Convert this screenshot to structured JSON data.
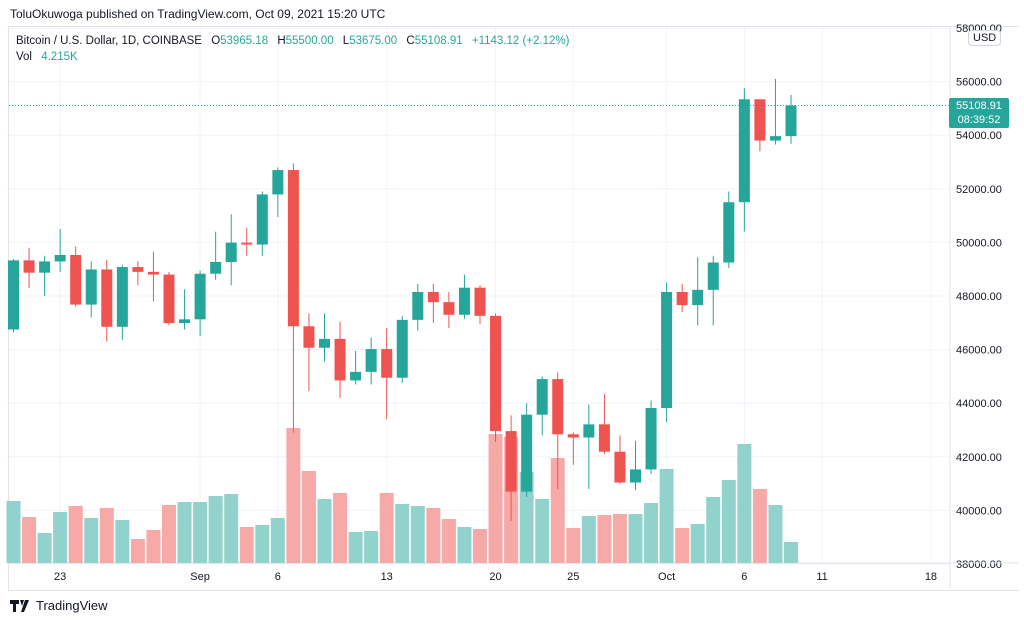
{
  "publisher_line": "ToluOkuwoga published on TradingView.com, Oct 09, 2021 15:20 UTC",
  "legend": {
    "symbol": "Bitcoin / U.S. Dollar, 1D, COINBASE",
    "open_label": "O",
    "open": "53965.18",
    "high_label": "H",
    "high": "55500.00",
    "low_label": "L",
    "low": "53675.00",
    "close_label": "C",
    "close": "55108.91",
    "change": "+1143.12 (+2.12%)",
    "vol_label": "Vol",
    "vol": "4.215K"
  },
  "currency_button": "USD",
  "last_price": {
    "price": "55108.91",
    "countdown": "08:39:52"
  },
  "footer_logo": "TradingView",
  "colors": {
    "up": "#26a69a",
    "down": "#ef5350",
    "up_volume": "#92d2cc",
    "down_volume": "#f7a9a7",
    "grid": "#f0f3fa"
  },
  "chart_data": {
    "type": "candlestick",
    "price_axis": {
      "range": [
        38000,
        58000
      ],
      "ticks": [
        "58000.00",
        "56000.00",
        "54000.00",
        "52000.00",
        "50000.00",
        "48000.00",
        "46000.00",
        "44000.00",
        "42000.00",
        "40000.00",
        "38000.00"
      ]
    },
    "time_axis": {
      "ticks": [
        {
          "label": "23",
          "date": "2021-08-23"
        },
        {
          "label": "Sep",
          "date": "2021-09-01"
        },
        {
          "label": "6",
          "date": "2021-09-06"
        },
        {
          "label": "13",
          "date": "2021-09-13"
        },
        {
          "label": "20",
          "date": "2021-09-20"
        },
        {
          "label": "25",
          "date": "2021-09-25"
        },
        {
          "label": "Oct",
          "date": "2021-10-01"
        },
        {
          "label": "6",
          "date": "2021-10-06"
        },
        {
          "label": "11",
          "date": "2021-10-11"
        },
        {
          "label": "18",
          "date": "2021-10-18"
        }
      ],
      "range": [
        "2021-08-20",
        "2021-10-21"
      ]
    },
    "grid": true,
    "volume_unit": "K",
    "columns": [
      "date",
      "open",
      "high",
      "low",
      "close",
      "volume"
    ],
    "candles": [
      [
        "2021-08-20",
        46750,
        49380,
        46650,
        49330,
        12.4
      ],
      [
        "2021-08-21",
        49330,
        49800,
        48300,
        48870,
        9.2
      ],
      [
        "2021-08-22",
        48870,
        49500,
        48000,
        49290,
        6.0
      ],
      [
        "2021-08-23",
        49290,
        50500,
        48900,
        49530,
        10.2
      ],
      [
        "2021-08-24",
        49530,
        49850,
        47600,
        47680,
        11.4
      ],
      [
        "2021-08-25",
        47680,
        49300,
        47200,
        48990,
        9.0
      ],
      [
        "2021-08-26",
        48990,
        49350,
        46300,
        46850,
        11.0
      ],
      [
        "2021-08-27",
        46850,
        49150,
        46350,
        49080,
        8.6
      ],
      [
        "2021-08-28",
        49080,
        49300,
        48400,
        48900,
        4.8
      ],
      [
        "2021-08-29",
        48900,
        49650,
        47800,
        48800,
        6.6
      ],
      [
        "2021-08-30",
        48800,
        48900,
        46900,
        46990,
        11.6
      ],
      [
        "2021-08-31",
        46990,
        48250,
        46750,
        47130,
        12.2
      ],
      [
        "2021-09-01",
        47130,
        48950,
        46500,
        48830,
        12.2
      ],
      [
        "2021-09-02",
        48830,
        50400,
        48600,
        49270,
        13.4
      ],
      [
        "2021-09-03",
        49270,
        51050,
        48400,
        49990,
        13.8
      ],
      [
        "2021-09-04",
        49990,
        50550,
        49500,
        49920,
        7.2
      ],
      [
        "2021-09-05",
        49920,
        51900,
        49500,
        51790,
        7.6
      ],
      [
        "2021-09-06",
        51790,
        52800,
        50950,
        52700,
        9.0
      ],
      [
        "2021-09-07",
        52700,
        52950,
        42900,
        46870,
        27.0
      ],
      [
        "2021-09-08",
        46870,
        47350,
        44450,
        46070,
        18.4
      ],
      [
        "2021-09-09",
        46070,
        47350,
        45550,
        46400,
        12.8
      ],
      [
        "2021-09-10",
        46400,
        47050,
        44200,
        44850,
        14.0
      ],
      [
        "2021-09-11",
        44850,
        45950,
        44700,
        45170,
        6.2
      ],
      [
        "2021-09-12",
        45170,
        46450,
        44700,
        46020,
        6.4
      ],
      [
        "2021-09-13",
        46020,
        46800,
        43400,
        44950,
        14.0
      ],
      [
        "2021-09-14",
        44950,
        47250,
        44750,
        47110,
        11.8
      ],
      [
        "2021-09-15",
        47110,
        48450,
        46700,
        48150,
        11.4
      ],
      [
        "2021-09-16",
        48150,
        48450,
        47000,
        47770,
        11.0
      ],
      [
        "2021-09-17",
        47770,
        48150,
        46800,
        47300,
        8.8
      ],
      [
        "2021-09-18",
        47300,
        48800,
        47150,
        48310,
        7.2
      ],
      [
        "2021-09-19",
        48310,
        48400,
        46950,
        47260,
        6.8
      ],
      [
        "2021-09-20",
        47260,
        47350,
        42550,
        42960,
        25.8
      ],
      [
        "2021-09-21",
        42960,
        43550,
        39600,
        40700,
        25.2
      ],
      [
        "2021-09-22",
        40700,
        44000,
        40500,
        43570,
        18.2
      ],
      [
        "2021-09-23",
        43570,
        45000,
        42800,
        44900,
        12.8
      ],
      [
        "2021-09-24",
        44900,
        45150,
        40800,
        42840,
        21.0
      ],
      [
        "2021-09-25",
        42840,
        42900,
        41700,
        42720,
        7.0
      ],
      [
        "2021-09-26",
        42720,
        43950,
        40800,
        43210,
        9.4
      ],
      [
        "2021-09-27",
        43210,
        44350,
        42100,
        42190,
        9.6
      ],
      [
        "2021-09-28",
        42190,
        42800,
        41000,
        41040,
        9.8
      ],
      [
        "2021-09-29",
        41040,
        42600,
        40750,
        41530,
        9.8
      ],
      [
        "2021-09-30",
        41530,
        44100,
        41350,
        43820,
        12.0
      ],
      [
        "2021-10-01",
        43820,
        48500,
        43300,
        48150,
        18.8
      ],
      [
        "2021-10-02",
        48150,
        48450,
        47400,
        47660,
        7.0
      ],
      [
        "2021-10-03",
        47660,
        49450,
        46900,
        48230,
        7.8
      ],
      [
        "2021-10-04",
        48230,
        49500,
        46900,
        49250,
        13.2
      ],
      [
        "2021-10-05",
        49250,
        51900,
        49050,
        51500,
        16.6
      ],
      [
        "2021-10-06",
        51500,
        55750,
        50400,
        55340,
        23.8
      ],
      [
        "2021-10-07",
        55340,
        55350,
        53400,
        53800,
        14.8
      ],
      [
        "2021-10-08",
        53800,
        56100,
        53650,
        53965,
        11.6
      ],
      [
        "2021-10-09",
        53965,
        55500,
        53675,
        55108.91,
        4.215
      ]
    ]
  }
}
